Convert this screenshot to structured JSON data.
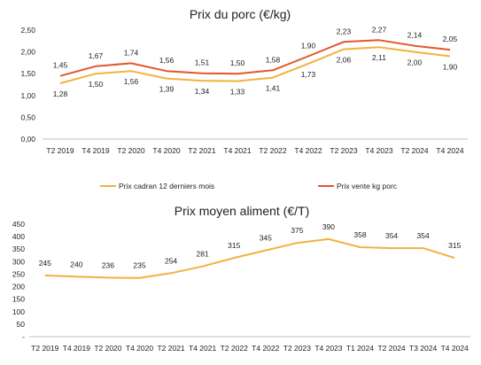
{
  "colors": {
    "cadran": "#F2B23E",
    "vente": "#E1572C",
    "aliment": "#F2B23E",
    "axis": "#BFBFBF",
    "text": "#222222"
  },
  "chart_data": [
    {
      "type": "line",
      "title": "Prix du porc (€/kg)",
      "categories": [
        "T2 2019",
        "T4 2019",
        "T2 2020",
        "T4 2020",
        "T2 2021",
        "T4 2021",
        "T2 2022",
        "T4 2022",
        "T2 2023",
        "T4 2023",
        "T2 2024",
        "T4 2024"
      ],
      "yticks": [
        "0,00",
        "0,50",
        "1,00",
        "1,50",
        "2,00",
        "2,50"
      ],
      "ylim": [
        0,
        2.5
      ],
      "grid": false,
      "legend_position": "bottom",
      "series": [
        {
          "name": "Prix cadran 12 derniers mois",
          "values": [
            1.28,
            1.5,
            1.56,
            1.39,
            1.34,
            1.33,
            1.41,
            1.73,
            2.06,
            2.11,
            2.0,
            1.9
          ],
          "labels": [
            "1,28",
            "1,50",
            "1,56",
            "1,39",
            "1,34",
            "1,33",
            "1,41",
            "1,73",
            "2,06",
            "2,11",
            "2,00",
            "1,90"
          ]
        },
        {
          "name": "Prix vente kg porc",
          "values": [
            1.45,
            1.67,
            1.74,
            1.56,
            1.51,
            1.5,
            1.58,
            1.9,
            2.23,
            2.27,
            2.14,
            2.05
          ],
          "labels": [
            "1,45",
            "1,67",
            "1,74",
            "1,56",
            "1,51",
            "1,50",
            "1,58",
            "1,90",
            "2,23",
            "2,27",
            "2,14",
            "2,05"
          ]
        }
      ]
    },
    {
      "type": "line",
      "title": "Prix moyen aliment (€/T)",
      "categories": [
        "T2 2019",
        "T4 2019",
        "T2 2020",
        "T4 2020",
        "T2 2021",
        "T4 2021",
        "T2 2022",
        "T4 2022",
        "T2 2023",
        "T4 2023",
        "T1 2024",
        "T2 2024",
        "T3 2024",
        "T4 2024"
      ],
      "yticks": [
        "-",
        "50",
        "100",
        "150",
        "200",
        "250",
        "300",
        "350",
        "400",
        "450"
      ],
      "ylim": [
        0,
        450
      ],
      "grid": false,
      "legend_position": "none",
      "series": [
        {
          "name": "",
          "values": [
            245,
            240,
            236,
            235,
            254,
            281,
            315,
            345,
            375,
            390,
            358,
            354,
            354,
            315
          ],
          "labels": [
            "245",
            "240",
            "236",
            "235",
            "254",
            "281",
            "315",
            "345",
            "375",
            "390",
            "358",
            "354",
            "354",
            "315"
          ]
        }
      ]
    }
  ]
}
